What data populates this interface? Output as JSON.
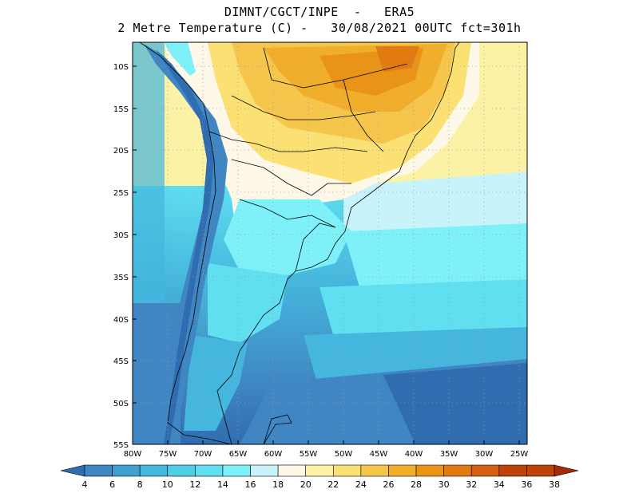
{
  "title": {
    "line1": "DIMNT/CGCT/INPE  -   ERA5",
    "line2": "2 Metre Temperature (C) -   30/08/2021 00UTC fct=301h"
  },
  "map": {
    "region": "South America",
    "variable": "2 Metre Temperature",
    "units": "C",
    "lat_range": [
      -55,
      -7
    ],
    "lon_range": [
      -80,
      -24
    ],
    "lat_ticks": [
      "10S",
      "15S",
      "20S",
      "25S",
      "30S",
      "35S",
      "40S",
      "45S",
      "50S",
      "55S"
    ],
    "lon_ticks": [
      "80W",
      "75W",
      "70W",
      "65W",
      "60W",
      "55W",
      "50W",
      "45W",
      "40W",
      "35W",
      "30W",
      "25W"
    ]
  },
  "colorbar": {
    "labels": [
      "4",
      "6",
      "8",
      "10",
      "12",
      "14",
      "16",
      "18",
      "20",
      "22",
      "24",
      "26",
      "28",
      "30",
      "32",
      "34",
      "36",
      "38"
    ],
    "colors": [
      "#2f6db0",
      "#3f86c2",
      "#3fa0cf",
      "#45b6dd",
      "#4fcde6",
      "#5fdff0",
      "#7ef0f8",
      "#c9f3fb",
      "#fef8e8",
      "#fcf2a6",
      "#fbe073",
      "#f5c64b",
      "#f0ae2a",
      "#e99417",
      "#e17a12",
      "#d45f10",
      "#bf4209",
      "#a32b05"
    ]
  }
}
